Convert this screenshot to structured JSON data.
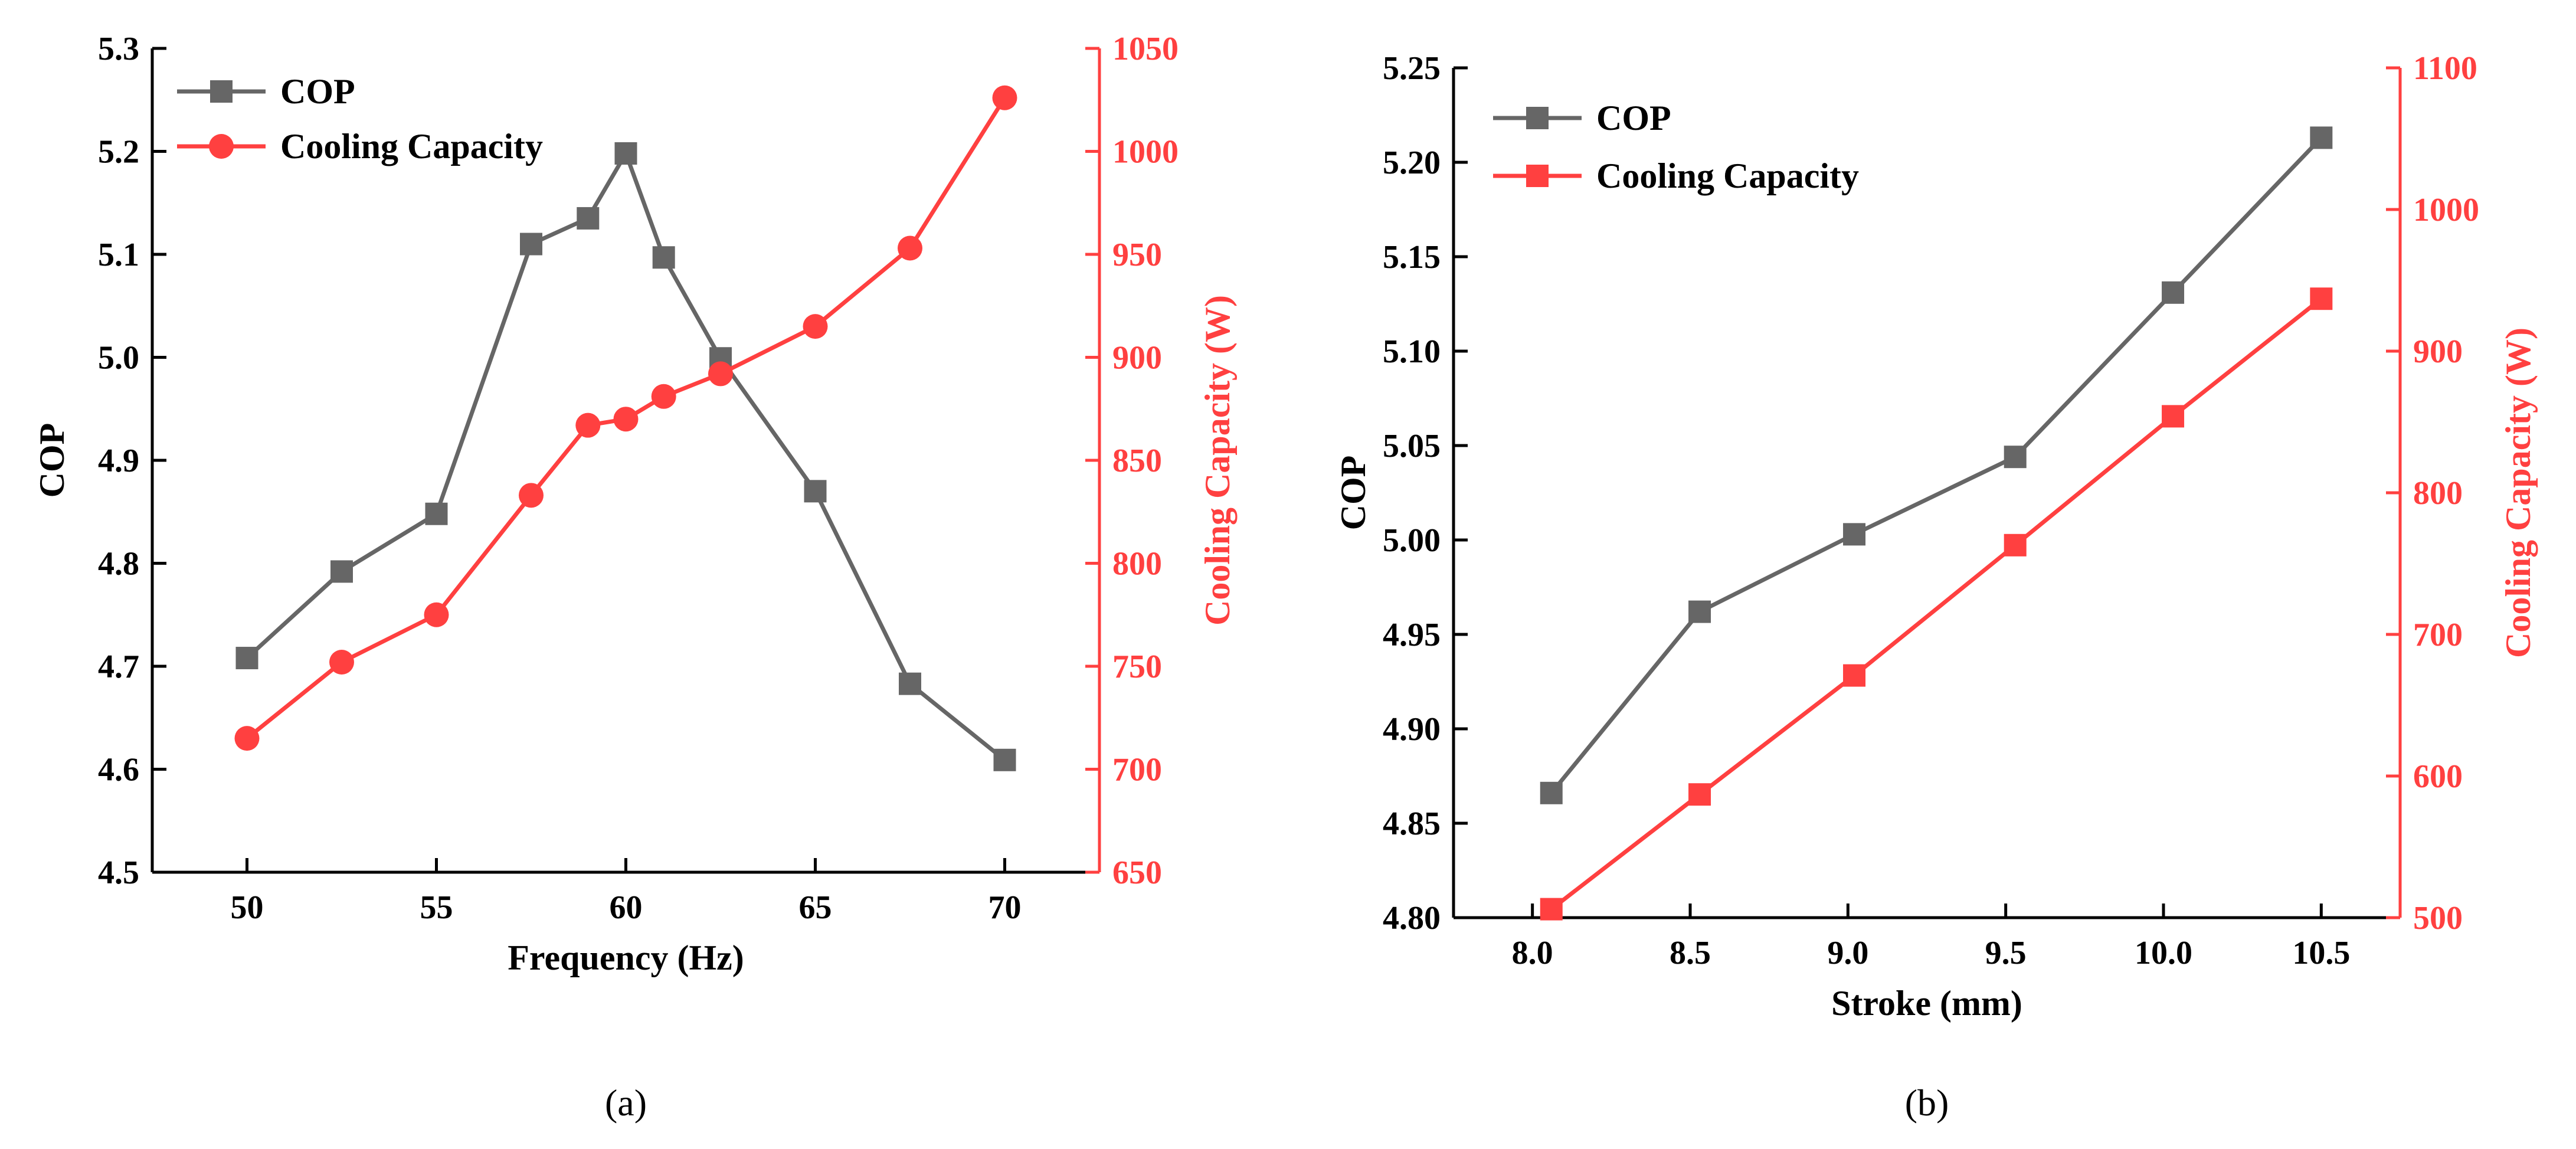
{
  "colors": {
    "cop": "#666666",
    "cooling": "#ff4040",
    "axis": "#000000",
    "right_axis": "#ff4040"
  },
  "chart_data": [
    {
      "type": "line",
      "caption": "(a)",
      "xlabel": "Frequency (Hz)",
      "ylabel": "COP",
      "y2label": "Cooling Capacity (W)",
      "xlim": [
        47.5,
        72.5
      ],
      "ylim": [
        4.5,
        5.3
      ],
      "y2lim": [
        650,
        1050
      ],
      "xticks": [
        50,
        55,
        60,
        65,
        70
      ],
      "xtick_labels": [
        "50",
        "55",
        "60",
        "65",
        "70"
      ],
      "yticks": [
        4.5,
        4.6,
        4.7,
        4.8,
        4.9,
        5.0,
        5.1,
        5.2,
        5.3
      ],
      "ytick_labels": [
        "4.5",
        "4.6",
        "4.7",
        "4.8",
        "4.9",
        "5.0",
        "5.1",
        "5.2",
        "5.3"
      ],
      "y2ticks": [
        650,
        700,
        750,
        800,
        850,
        900,
        950,
        1000,
        1050
      ],
      "y2tick_labels": [
        "650",
        "700",
        "750",
        "800",
        "850",
        "900",
        "950",
        "1000",
        "1050"
      ],
      "legend_position": "top-left",
      "series": [
        {
          "name": "COP",
          "axis": "left",
          "marker": "square",
          "x": [
            50,
            52.5,
            55,
            57.5,
            59,
            60,
            61,
            62.5,
            65,
            67.5,
            70
          ],
          "y": [
            4.708,
            4.792,
            4.848,
            5.11,
            5.135,
            5.198,
            5.097,
            4.999,
            4.87,
            4.683,
            4.609
          ]
        },
        {
          "name": "Cooling Capacity",
          "axis": "right",
          "marker": "circle",
          "x": [
            50,
            52.5,
            55,
            57.5,
            59,
            60,
            61,
            62.5,
            65,
            67.5,
            70
          ],
          "y": [
            715,
            752,
            775,
            833,
            867,
            870,
            881,
            892,
            915,
            953,
            1026
          ]
        }
      ]
    },
    {
      "type": "line",
      "caption": "(b)",
      "xlabel": "Stroke (mm)",
      "ylabel": "COP",
      "y2label": "Cooling Capacity (W)",
      "xlim": [
        7.75,
        10.75
      ],
      "ylim": [
        4.8,
        5.25
      ],
      "y2lim": [
        500,
        1100
      ],
      "xticks": [
        8.0,
        8.5,
        9.0,
        9.5,
        10.0,
        10.5
      ],
      "xtick_labels": [
        "8.0",
        "8.5",
        "9.0",
        "9.5",
        "10.0",
        "10.5"
      ],
      "yticks": [
        4.8,
        4.85,
        4.9,
        4.95,
        5.0,
        5.05,
        5.1,
        5.15,
        5.2,
        5.25
      ],
      "ytick_labels": [
        "4.80",
        "4.85",
        "4.90",
        "4.95",
        "5.00",
        "5.05",
        "5.10",
        "5.15",
        "5.20",
        "5.25"
      ],
      "y2ticks": [
        500,
        600,
        700,
        800,
        900,
        1000,
        1100
      ],
      "y2tick_labels": [
        "500",
        "600",
        "700",
        "800",
        "900",
        "1000",
        "1100"
      ],
      "legend_position": "top-left",
      "series": [
        {
          "name": "COP",
          "axis": "left",
          "marker": "square",
          "x": [
            8.06,
            8.53,
            9.02,
            9.53,
            10.03,
            10.5
          ],
          "y": [
            4.866,
            4.962,
            5.003,
            5.044,
            5.131,
            5.213
          ]
        },
        {
          "name": "Cooling Capacity",
          "axis": "right",
          "marker": "square",
          "x": [
            8.06,
            8.53,
            9.02,
            9.53,
            10.03,
            10.5
          ],
          "y": [
            506,
            587,
            671,
            763,
            854,
            937
          ]
        }
      ]
    }
  ]
}
